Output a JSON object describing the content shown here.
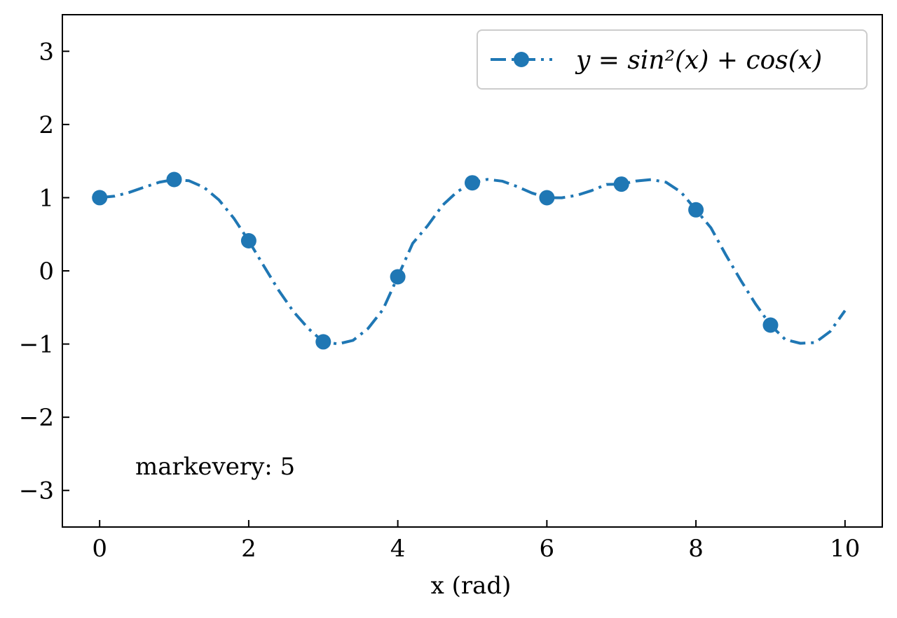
{
  "chart_data": {
    "type": "line",
    "title": "",
    "xlabel": "x (rad)",
    "ylabel": "",
    "xlim": [
      -0.5,
      10.5
    ],
    "ylim": [
      -3.5,
      3.5
    ],
    "xticks": [
      0,
      2,
      4,
      6,
      8,
      10
    ],
    "xtick_labels": [
      "0",
      "2",
      "4",
      "6",
      "8",
      "10"
    ],
    "yticks": [
      -3,
      -2,
      -1,
      0,
      1,
      2,
      3
    ],
    "ytick_labels": [
      "−3",
      "−2",
      "−1",
      "0",
      "1",
      "2",
      "3"
    ],
    "grid": false,
    "legend_position": "top-right",
    "annotation": "markevery: 5",
    "colors": {
      "series": "#1f77b4"
    },
    "series": [
      {
        "name": "y = sin²(x) + cos(x)",
        "line_style": "dash-dot",
        "marker": "circle",
        "x": [
          0,
          0.2,
          0.4,
          0.6,
          0.8,
          1.0,
          1.2,
          1.4,
          1.6,
          1.8,
          2.0,
          2.2,
          2.4,
          2.6,
          2.8,
          3.0,
          3.2,
          3.4,
          3.6,
          3.8,
          4.0,
          4.2,
          4.4,
          4.6,
          4.8,
          5.0,
          5.2,
          5.4,
          5.6,
          5.8,
          6.0,
          6.2,
          6.4,
          6.6,
          6.8,
          7.0,
          7.2,
          7.4,
          7.6,
          7.8,
          8.0,
          8.2,
          8.4,
          8.6,
          8.8,
          9.0,
          9.2,
          9.4,
          9.6,
          9.8,
          10.0
        ],
        "y": [
          1.0,
          1.02,
          1.073,
          1.144,
          1.211,
          1.248,
          1.231,
          1.141,
          0.97,
          0.72,
          0.411,
          0.071,
          -0.264,
          -0.557,
          -0.788,
          -0.97,
          -0.998,
          -0.95,
          -0.789,
          -0.53,
          -0.081,
          0.376,
          0.617,
          0.896,
          1.083,
          1.203,
          1.25,
          1.226,
          1.152,
          1.063,
          0.999,
          0.998,
          1.032,
          1.097,
          1.181,
          1.185,
          1.228,
          1.247,
          1.211,
          1.076,
          0.834,
          0.589,
          0.221,
          -0.127,
          -0.453,
          -0.741,
          -0.939,
          -0.99,
          -0.98,
          -0.829,
          -0.543
        ],
        "marker_x": [
          0,
          1.0,
          2.0,
          3.0,
          4.0,
          5.0,
          6.0,
          7.0,
          8.0,
          9.0
        ],
        "marker_y": [
          1.0,
          1.248,
          0.411,
          -0.97,
          -0.081,
          1.203,
          0.999,
          1.185,
          0.834,
          -0.741
        ]
      }
    ]
  }
}
